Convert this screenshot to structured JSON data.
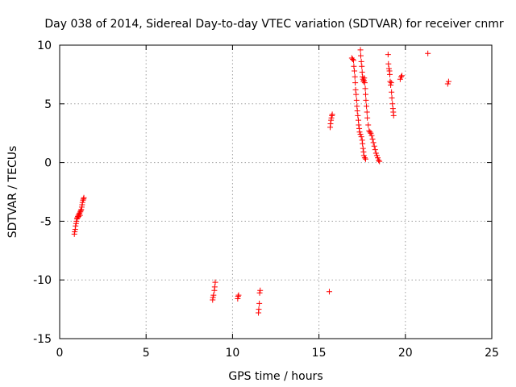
{
  "chart_data": {
    "type": "scatter",
    "title": "Day 038 of 2014, Sidereal Day-to-day VTEC variation (SDTVAR) for receiver cnmr",
    "xlabel": "GPS time / hours",
    "ylabel": "SDTVAR / TECUs",
    "xlim": [
      0,
      25
    ],
    "ylim": [
      -15,
      10
    ],
    "xticks": [
      0,
      5,
      10,
      15,
      20,
      25
    ],
    "yticks": [
      -15,
      -10,
      -5,
      0,
      5,
      10
    ],
    "xtick_labels": [
      "0",
      "5",
      "10",
      "15",
      "20",
      "25"
    ],
    "ytick_labels": [
      "-15",
      "-10",
      "-5",
      "0",
      "5",
      "10"
    ],
    "grid": true,
    "marker": "+",
    "color": "#ff0000",
    "series": [
      {
        "name": "SDTVAR",
        "points": [
          [
            0.85,
            -6.1
          ],
          [
            0.87,
            -5.9
          ],
          [
            0.9,
            -5.7
          ],
          [
            0.92,
            -5.4
          ],
          [
            0.95,
            -5.2
          ],
          [
            0.97,
            -5.0
          ],
          [
            1.0,
            -4.8
          ],
          [
            1.02,
            -4.7
          ],
          [
            1.05,
            -4.6
          ],
          [
            1.08,
            -4.5
          ],
          [
            1.1,
            -4.6
          ],
          [
            1.12,
            -4.4
          ],
          [
            1.15,
            -4.3
          ],
          [
            1.18,
            -4.5
          ],
          [
            1.2,
            -4.2
          ],
          [
            1.22,
            -4.1
          ],
          [
            1.25,
            -4.0
          ],
          [
            1.28,
            -3.8
          ],
          [
            1.3,
            -3.6
          ],
          [
            1.32,
            -3.4
          ],
          [
            1.35,
            -3.2
          ],
          [
            1.38,
            -3.1
          ],
          [
            1.4,
            -3.0
          ],
          [
            8.85,
            -11.7
          ],
          [
            8.87,
            -11.5
          ],
          [
            8.9,
            -11.3
          ],
          [
            8.95,
            -10.9
          ],
          [
            8.97,
            -10.6
          ],
          [
            9.0,
            -10.2
          ],
          [
            10.3,
            -11.6
          ],
          [
            10.32,
            -11.4
          ],
          [
            10.35,
            -11.3
          ],
          [
            11.5,
            -12.8
          ],
          [
            11.52,
            -12.5
          ],
          [
            11.55,
            -12.0
          ],
          [
            11.57,
            -11.1
          ],
          [
            11.6,
            -10.9
          ],
          [
            15.6,
            -11.0
          ],
          [
            15.65,
            3.0
          ],
          [
            15.67,
            3.3
          ],
          [
            15.7,
            3.6
          ],
          [
            15.72,
            3.8
          ],
          [
            15.75,
            4.0
          ],
          [
            15.77,
            4.1
          ],
          [
            16.9,
            8.9
          ],
          [
            16.95,
            8.8
          ],
          [
            17.0,
            8.7
          ],
          [
            17.02,
            8.2
          ],
          [
            17.05,
            7.8
          ],
          [
            17.08,
            7.3
          ],
          [
            17.1,
            6.8
          ],
          [
            17.12,
            6.2
          ],
          [
            17.15,
            5.8
          ],
          [
            17.18,
            5.3
          ],
          [
            17.2,
            4.8
          ],
          [
            17.22,
            4.4
          ],
          [
            17.25,
            4.0
          ],
          [
            17.28,
            3.6
          ],
          [
            17.3,
            3.2
          ],
          [
            17.33,
            2.9
          ],
          [
            17.35,
            2.6
          ],
          [
            17.4,
            2.4
          ],
          [
            17.45,
            2.2
          ],
          [
            17.5,
            1.9
          ],
          [
            17.52,
            1.6
          ],
          [
            17.55,
            1.2
          ],
          [
            17.58,
            0.9
          ],
          [
            17.6,
            0.6
          ],
          [
            17.65,
            0.4
          ],
          [
            17.7,
            0.3
          ],
          [
            17.4,
            9.6
          ],
          [
            17.42,
            9.1
          ],
          [
            17.45,
            8.6
          ],
          [
            17.48,
            8.2
          ],
          [
            17.5,
            7.7
          ],
          [
            17.52,
            7.3
          ],
          [
            17.55,
            7.1
          ],
          [
            17.58,
            6.9
          ],
          [
            17.6,
            7.0
          ],
          [
            17.62,
            7.2
          ],
          [
            17.65,
            6.8
          ],
          [
            17.68,
            6.3
          ],
          [
            17.7,
            5.8
          ],
          [
            17.72,
            5.3
          ],
          [
            17.75,
            4.8
          ],
          [
            17.78,
            4.3
          ],
          [
            17.8,
            3.8
          ],
          [
            17.85,
            3.2
          ],
          [
            17.9,
            2.7
          ],
          [
            17.95,
            2.6
          ],
          [
            18.0,
            2.5
          ],
          [
            18.05,
            2.3
          ],
          [
            18.1,
            2.0
          ],
          [
            18.15,
            1.7
          ],
          [
            18.2,
            1.4
          ],
          [
            18.25,
            1.1
          ],
          [
            18.3,
            0.8
          ],
          [
            18.35,
            0.6
          ],
          [
            18.4,
            0.4
          ],
          [
            18.45,
            0.2
          ],
          [
            18.5,
            0.1
          ],
          [
            19.0,
            9.2
          ],
          [
            19.02,
            8.4
          ],
          [
            19.05,
            8.0
          ],
          [
            19.08,
            7.8
          ],
          [
            19.1,
            7.5
          ],
          [
            19.12,
            6.9
          ],
          [
            19.15,
            6.6
          ],
          [
            19.18,
            6.8
          ],
          [
            19.2,
            6.0
          ],
          [
            19.22,
            5.5
          ],
          [
            19.25,
            5.0
          ],
          [
            19.28,
            4.6
          ],
          [
            19.3,
            4.3
          ],
          [
            19.32,
            4.0
          ],
          [
            19.7,
            7.1
          ],
          [
            19.75,
            7.3
          ],
          [
            19.8,
            7.4
          ],
          [
            21.3,
            9.3
          ],
          [
            22.45,
            6.7
          ],
          [
            22.5,
            6.9
          ]
        ]
      }
    ]
  }
}
